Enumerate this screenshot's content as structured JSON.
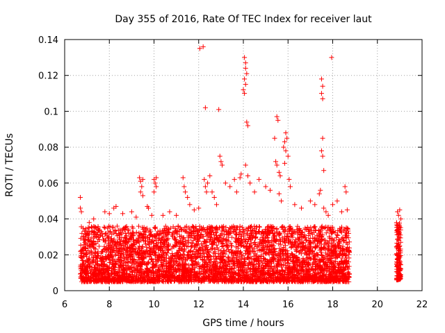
{
  "chart_data": {
    "type": "scatter",
    "title": "Day 355 of 2016, Rate Of TEC Index for receiver laut",
    "xlabel": "GPS time / hours",
    "ylabel": "ROTI / TECUs",
    "xlim": [
      6,
      22
    ],
    "ylim": [
      0,
      0.14
    ],
    "xticks": [
      6,
      8,
      10,
      12,
      14,
      16,
      18,
      20,
      22
    ],
    "xtick_labels": [
      "6",
      "8",
      "10",
      "12",
      "14",
      "16",
      "18",
      "20",
      "22"
    ],
    "yticks": [
      0,
      0.02,
      0.04,
      0.06,
      0.08,
      0.1,
      0.12,
      0.14
    ],
    "ytick_labels": [
      "0",
      "0.02",
      "0.04",
      "0.06",
      "0.08",
      "0.1",
      "0.12",
      "0.14"
    ],
    "grid": true,
    "marker": "+",
    "color": "#ff0000",
    "series": [
      {
        "name": "ROTI",
        "points": [
          [
            6.7,
            0.052
          ],
          [
            6.7,
            0.046
          ],
          [
            6.75,
            0.044
          ],
          [
            6.9,
            0.033
          ],
          [
            7.1,
            0.038
          ],
          [
            7.3,
            0.04
          ],
          [
            7.5,
            0.035
          ],
          [
            7.8,
            0.044
          ],
          [
            8.0,
            0.043
          ],
          [
            8.2,
            0.046
          ],
          [
            8.3,
            0.047
          ],
          [
            8.6,
            0.043
          ],
          [
            9.0,
            0.044
          ],
          [
            9.2,
            0.041
          ],
          [
            9.35,
            0.063
          ],
          [
            9.4,
            0.061
          ],
          [
            9.45,
            0.058
          ],
          [
            9.5,
            0.062
          ],
          [
            9.4,
            0.055
          ],
          [
            9.5,
            0.053
          ],
          [
            9.7,
            0.047
          ],
          [
            9.75,
            0.046
          ],
          [
            9.9,
            0.042
          ],
          [
            10.0,
            0.062
          ],
          [
            10.05,
            0.06
          ],
          [
            10.1,
            0.058
          ],
          [
            10.0,
            0.055
          ],
          [
            10.1,
            0.063
          ],
          [
            10.4,
            0.042
          ],
          [
            10.7,
            0.044
          ],
          [
            11.0,
            0.042
          ],
          [
            11.3,
            0.063
          ],
          [
            11.35,
            0.058
          ],
          [
            11.4,
            0.055
          ],
          [
            11.5,
            0.052
          ],
          [
            11.6,
            0.048
          ],
          [
            11.8,
            0.045
          ],
          [
            12.0,
            0.046
          ],
          [
            12.05,
            0.135
          ],
          [
            12.2,
            0.136
          ],
          [
            12.3,
            0.102
          ],
          [
            12.25,
            0.062
          ],
          [
            12.3,
            0.058
          ],
          [
            12.4,
            0.06
          ],
          [
            12.5,
            0.064
          ],
          [
            12.35,
            0.055
          ],
          [
            12.6,
            0.055
          ],
          [
            12.7,
            0.052
          ],
          [
            12.8,
            0.048
          ],
          [
            12.9,
            0.101
          ],
          [
            12.95,
            0.075
          ],
          [
            13.0,
            0.072
          ],
          [
            13.05,
            0.07
          ],
          [
            13.2,
            0.06
          ],
          [
            13.4,
            0.058
          ],
          [
            13.6,
            0.062
          ],
          [
            13.7,
            0.055
          ],
          [
            13.85,
            0.063
          ],
          [
            13.9,
            0.065
          ],
          [
            14.05,
            0.13
          ],
          [
            14.1,
            0.127
          ],
          [
            14.1,
            0.124
          ],
          [
            14.15,
            0.121
          ],
          [
            14.05,
            0.118
          ],
          [
            14.1,
            0.115
          ],
          [
            14.0,
            0.112
          ],
          [
            14.05,
            0.11
          ],
          [
            14.15,
            0.094
          ],
          [
            14.2,
            0.092
          ],
          [
            14.1,
            0.07
          ],
          [
            14.2,
            0.064
          ],
          [
            14.3,
            0.06
          ],
          [
            14.5,
            0.055
          ],
          [
            14.7,
            0.062
          ],
          [
            15.0,
            0.058
          ],
          [
            15.2,
            0.056
          ],
          [
            15.4,
            0.085
          ],
          [
            15.5,
            0.097
          ],
          [
            15.55,
            0.095
          ],
          [
            15.45,
            0.072
          ],
          [
            15.5,
            0.07
          ],
          [
            15.6,
            0.066
          ],
          [
            15.65,
            0.064
          ],
          [
            15.6,
            0.054
          ],
          [
            15.7,
            0.05
          ],
          [
            15.8,
            0.08
          ],
          [
            15.85,
            0.083
          ],
          [
            15.9,
            0.088
          ],
          [
            15.95,
            0.085
          ],
          [
            15.9,
            0.078
          ],
          [
            16.0,
            0.075
          ],
          [
            15.85,
            0.071
          ],
          [
            16.05,
            0.062
          ],
          [
            16.1,
            0.058
          ],
          [
            16.3,
            0.048
          ],
          [
            16.6,
            0.046
          ],
          [
            17.0,
            0.05
          ],
          [
            17.2,
            0.048
          ],
          [
            17.4,
            0.054
          ],
          [
            17.45,
            0.056
          ],
          [
            17.5,
            0.118
          ],
          [
            17.55,
            0.114
          ],
          [
            17.5,
            0.11
          ],
          [
            17.55,
            0.107
          ],
          [
            17.55,
            0.085
          ],
          [
            17.5,
            0.078
          ],
          [
            17.55,
            0.075
          ],
          [
            17.6,
            0.067
          ],
          [
            17.6,
            0.046
          ],
          [
            17.7,
            0.044
          ],
          [
            17.8,
            0.042
          ],
          [
            17.95,
            0.13
          ],
          [
            18.0,
            0.048
          ],
          [
            18.2,
            0.05
          ],
          [
            18.4,
            0.044
          ],
          [
            18.55,
            0.058
          ],
          [
            18.6,
            0.055
          ],
          [
            18.65,
            0.045
          ],
          [
            20.9,
            0.044
          ],
          [
            20.95,
            0.042
          ],
          [
            21.0,
            0.045
          ],
          [
            21.05,
            0.04
          ]
        ]
      }
    ],
    "dense_bands": [
      {
        "x_range": [
          6.7,
          18.75
        ],
        "y_min": 0.005,
        "y_max": 0.036,
        "count": 4200
      },
      {
        "x_range": [
          20.85,
          21.05
        ],
        "y_min": 0.006,
        "y_max": 0.038,
        "count": 140
      }
    ]
  }
}
